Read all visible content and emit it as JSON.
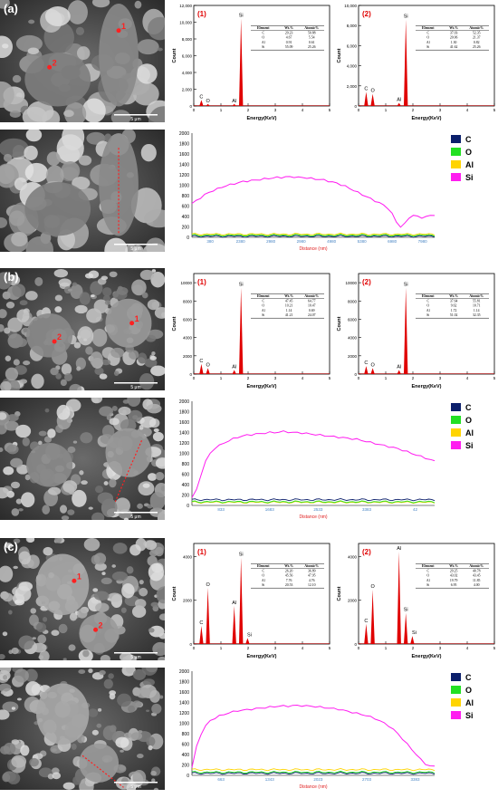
{
  "panels": [
    {
      "letter": "(a)",
      "scale_bar": "5 μm",
      "eds": [
        {
          "num": "(1)",
          "ylabel": "Count",
          "xlabel": "Energy(KeV)",
          "yticks": [
            "0",
            "2,000",
            "4,000",
            "6,000",
            "8,000",
            "10,000",
            "12,000"
          ],
          "ymax": 12000,
          "peaks": [
            {
              "el": "C",
              "e": 0.28,
              "h": 0.06
            },
            {
              "el": "O",
              "e": 0.52,
              "h": 0.02
            },
            {
              "el": "Al",
              "e": 1.49,
              "h": 0.02
            },
            {
              "el": "Si",
              "e": 1.74,
              "h": 0.87
            }
          ],
          "table": {
            "head": [
              "Element",
              "Wt.%",
              "Atomic%"
            ],
            "rows": [
              [
                "C",
                "29.23",
                "50.88"
              ],
              [
                "O",
                "4.67",
                "5.54"
              ],
              [
                "Al",
                "0.91",
                "0.61"
              ],
              [
                "Si",
                "55.09",
                "25.26"
              ]
            ]
          }
        },
        {
          "num": "(2)",
          "ylabel": "Count",
          "xlabel": "Energy(KeV)",
          "yticks": [
            "0",
            "2,000",
            "4,000",
            "6,000",
            "8,000",
            "10,000"
          ],
          "ymax": 10000,
          "peaks": [
            {
              "el": "C",
              "e": 0.28,
              "h": 0.14
            },
            {
              "el": "O",
              "e": 0.52,
              "h": 0.12
            },
            {
              "el": "Al",
              "e": 1.49,
              "h": 0.03
            },
            {
              "el": "Si",
              "e": 1.74,
              "h": 0.86
            }
          ],
          "table": {
            "head": [
              "Element",
              "Wt.%",
              "Atomic%"
            ],
            "rows": [
              [
                "C",
                "37.03",
                "52.35"
              ],
              [
                "O",
                "20.06",
                "21.37"
              ],
              [
                "Al",
                "1.30",
                "0.82"
              ],
              [
                "Si",
                "41.62",
                "25.26"
              ]
            ]
          }
        }
      ],
      "linescan": {
        "xlabel": "Distance (nm)",
        "yticks": [
          "0",
          "200",
          "400",
          "600",
          "800",
          "1000",
          "1200",
          "1400",
          "1600",
          "1800",
          "2000"
        ],
        "xticks": [
          "380",
          "2380",
          "2980",
          "2980",
          "4980",
          "5380",
          "6980",
          "7980"
        ],
        "si_profile": [
          650,
          700,
          760,
          820,
          860,
          900,
          930,
          960,
          990,
          1010,
          1030,
          1050,
          1070,
          1080,
          1090,
          1100,
          1110,
          1120,
          1130,
          1140,
          1150,
          1150,
          1160,
          1160,
          1160,
          1150,
          1150,
          1140,
          1130,
          1120,
          1110,
          1100,
          1080,
          1060,
          1040,
          1010,
          980,
          940,
          900,
          860,
          820,
          780,
          740,
          700,
          660,
          620,
          560,
          450,
          300,
          200,
          260,
          380,
          420,
          400,
          380,
          390,
          420,
          430
        ],
        "al_level": 60,
        "o_level": 40,
        "c_level": 20,
        "legend": [
          {
            "name": "C",
            "color": "#0b1f6b"
          },
          {
            "name": "O",
            "color": "#22e022"
          },
          {
            "name": "Al",
            "color": "#ffd400"
          },
          {
            "name": "Si",
            "color": "#ff1cf0"
          }
        ]
      }
    },
    {
      "letter": "(b)",
      "scale_bar": "5 μm",
      "eds": [
        {
          "num": "(1)",
          "ylabel": "Count",
          "xlabel": "Energy(KeV)",
          "yticks": [
            "0",
            "2000",
            "4000",
            "6000",
            "8000",
            "10000"
          ],
          "ymax": 11000,
          "peaks": [
            {
              "el": "C",
              "e": 0.28,
              "h": 0.1
            },
            {
              "el": "O",
              "e": 0.52,
              "h": 0.06
            },
            {
              "el": "Al",
              "e": 1.49,
              "h": 0.04
            },
            {
              "el": "Si",
              "e": 1.74,
              "h": 0.86
            }
          ],
          "table": {
            "head": [
              "Element",
              "Wt.%",
              "Atomic%"
            ],
            "rows": [
              [
                "C",
                "47.45",
                "64.77"
              ],
              [
                "O",
                "10.21",
                "10.47"
              ],
              [
                "Al",
                "1.14",
                "0.69"
              ],
              [
                "Si",
                "41.21",
                "24.07"
              ]
            ]
          }
        },
        {
          "num": "(2)",
          "ylabel": "Count",
          "xlabel": "Energy(KeV)",
          "yticks": [
            "0",
            "2000",
            "4000",
            "6000",
            "8000",
            "10000"
          ],
          "ymax": 11000,
          "peaks": [
            {
              "el": "C",
              "e": 0.28,
              "h": 0.08
            },
            {
              "el": "O",
              "e": 0.52,
              "h": 0.06
            },
            {
              "el": "Al",
              "e": 1.49,
              "h": 0.04
            },
            {
              "el": "Si",
              "e": 1.74,
              "h": 0.86
            }
          ],
          "table": {
            "head": [
              "Element",
              "Wt.%",
              "Atomic%"
            ],
            "rows": [
              [
                "C",
                "37.64",
                "55.81"
              ],
              [
                "O",
                "9.62",
                "10.71"
              ],
              [
                "Al",
                "1.72",
                "1.14"
              ],
              [
                "Si",
                "51.02",
                "32.35"
              ]
            ]
          }
        }
      ],
      "linescan": {
        "xlabel": "Distance (nm)",
        "yticks": [
          "0",
          "200",
          "400",
          "600",
          "800",
          "1000",
          "1200",
          "1400",
          "1600",
          "1800",
          "2000"
        ],
        "xticks": [
          "833",
          "1683",
          "2533",
          "3383",
          "42"
        ],
        "si_profile": [
          150,
          300,
          600,
          850,
          1000,
          1100,
          1150,
          1200,
          1240,
          1280,
          1310,
          1330,
          1350,
          1360,
          1370,
          1380,
          1390,
          1400,
          1400,
          1410,
          1420,
          1410,
          1400,
          1400,
          1390,
          1380,
          1370,
          1360,
          1350,
          1340,
          1330,
          1320,
          1310,
          1300,
          1290,
          1280,
          1270,
          1250,
          1230,
          1210,
          1190,
          1170,
          1150,
          1130,
          1110,
          1090,
          1060,
          1030,
          1000,
          970,
          940,
          910,
          880,
          850
        ],
        "al_level": 60,
        "o_level": 70,
        "c_level": 110,
        "legend": [
          {
            "name": "C",
            "color": "#0b1f6b"
          },
          {
            "name": "O",
            "color": "#22e022"
          },
          {
            "name": "Al",
            "color": "#ffd400"
          },
          {
            "name": "Si",
            "color": "#ff1cf0"
          }
        ]
      }
    },
    {
      "letter": "(c)",
      "scale_bar": "5 μm",
      "eds": [
        {
          "num": "(1)",
          "ylabel": "Count",
          "xlabel": "Energy(KeV)",
          "yticks": [
            "0",
            "2000",
            "4000"
          ],
          "ymax": 4600,
          "peaks": [
            {
              "el": "C",
              "e": 0.28,
              "h": 0.18
            },
            {
              "el": "O",
              "e": 0.52,
              "h": 0.56
            },
            {
              "el": "Al",
              "e": 1.49,
              "h": 0.38
            },
            {
              "el": "Si",
              "e": 1.74,
              "h": 0.86
            },
            {
              "el": "Si",
              "e": 1.98,
              "h": 0.06
            }
          ],
          "table": {
            "head": [
              "Element",
              "Wt.%",
              "Atomic%"
            ],
            "rows": [
              [
                "C",
                "26.20",
                "36.89"
              ],
              [
                "O",
                "45.56",
                "47.95"
              ],
              [
                "Al",
                "7.76",
                "4.76"
              ],
              [
                "Si",
                "20.53",
                "12.10"
              ]
            ]
          }
        },
        {
          "num": "(2)",
          "ylabel": "Count",
          "xlabel": "Energy(KeV)",
          "yticks": [
            "0",
            "2000",
            "4000"
          ],
          "ymax": 4600,
          "peaks": [
            {
              "el": "C",
              "e": 0.28,
              "h": 0.2
            },
            {
              "el": "O",
              "e": 0.52,
              "h": 0.54
            },
            {
              "el": "Al",
              "e": 1.49,
              "h": 0.92
            },
            {
              "el": "Si",
              "e": 1.74,
              "h": 0.31
            },
            {
              "el": "Si",
              "e": 1.98,
              "h": 0.08
            }
          ],
          "table": {
            "head": [
              "Element",
              "Wt.%",
              "Atomic%"
            ],
            "rows": [
              [
                "C",
                "29.25",
                "40.78"
              ],
              [
                "O",
                "43.02",
                "43.45"
              ],
              [
                "Al",
                "19.79",
                "11.85"
              ],
              [
                "Si",
                "6.95",
                "4.00"
              ]
            ]
          }
        }
      ],
      "linescan": {
        "xlabel": "Distance (nm)",
        "yticks": [
          "0",
          "200",
          "400",
          "600",
          "800",
          "1000",
          "1200",
          "1400",
          "1600",
          "1800",
          "2000"
        ],
        "xticks": [
          "663",
          "1343",
          "2023",
          "2703",
          "3383"
        ],
        "si_profile": [
          150,
          550,
          800,
          950,
          1050,
          1100,
          1140,
          1170,
          1200,
          1220,
          1240,
          1250,
          1260,
          1270,
          1280,
          1290,
          1300,
          1310,
          1320,
          1330,
          1330,
          1330,
          1340,
          1340,
          1340,
          1330,
          1330,
          1320,
          1310,
          1300,
          1290,
          1280,
          1270,
          1250,
          1230,
          1210,
          1190,
          1170,
          1150,
          1120,
          1090,
          1050,
          1000,
          950,
          880,
          800,
          700,
          600,
          500,
          400,
          300,
          220,
          180,
          170
        ],
        "al_level": 110,
        "o_level": 60,
        "c_level": 40,
        "legend": [
          {
            "name": "C",
            "color": "#0b1f6b"
          },
          {
            "name": "O",
            "color": "#22e022"
          },
          {
            "name": "Al",
            "color": "#ffd400"
          },
          {
            "name": "Si",
            "color": "#ff1cf0"
          }
        ]
      }
    }
  ]
}
